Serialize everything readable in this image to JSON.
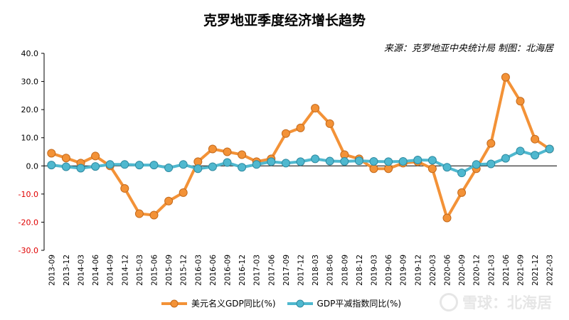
{
  "title": "克罗地亚季度经济增长趋势",
  "source": "来源：克罗地亚中央统计局 制图：北海居",
  "watermark": "雪球：北海居",
  "chart_data": {
    "type": "line",
    "title": "克罗地亚季度经济增长趋势",
    "ylim": [
      -30,
      40
    ],
    "yticks": [
      "40.0",
      "30.0",
      "20.0",
      "10.0",
      "0.0",
      "-10.0",
      "-20.0",
      "-30.0"
    ],
    "ytick_values": [
      40,
      30,
      20,
      10,
      0,
      -10,
      -20,
      -30
    ],
    "negative_tick_color": "#e00000",
    "grid": false,
    "legend": "bottom",
    "categories": [
      "2013-09",
      "2013-12",
      "2014-03",
      "2014-06",
      "2014-09",
      "2014-12",
      "2015-03",
      "2015-06",
      "2015-09",
      "2015-12",
      "2016-03",
      "2016-06",
      "2016-09",
      "2016-12",
      "2017-03",
      "2017-06",
      "2017-09",
      "2017-12",
      "2018-03",
      "2018-06",
      "2018-09",
      "2018-12",
      "2019-03",
      "2019-06",
      "2019-09",
      "2019-12",
      "2020-03",
      "2020-06",
      "2020-09",
      "2020-12",
      "2021-03",
      "2021-06",
      "2021-09",
      "2021-12",
      "2022-03"
    ],
    "series": [
      {
        "name": "美元名义GDP同比(%)",
        "color": "#f39237",
        "values": [
          4.5,
          2.8,
          1.0,
          3.5,
          0.0,
          -8.0,
          -17.0,
          -17.5,
          -12.5,
          -9.5,
          1.5,
          6.0,
          5.0,
          4.0,
          1.5,
          2.5,
          11.5,
          13.5,
          20.5,
          15.0,
          4.0,
          2.5,
          -1.0,
          -1.0,
          1.0,
          1.5,
          -1.0,
          -18.5,
          -9.5,
          -1.0,
          8.0,
          31.5,
          23.0,
          9.5,
          6.0
        ]
      },
      {
        "name": "GDP平减指数同比(%)",
        "color": "#4fb8cf",
        "values": [
          0.3,
          -0.3,
          -0.8,
          -0.2,
          0.5,
          0.5,
          0.3,
          0.3,
          -0.7,
          0.5,
          -1.0,
          -0.3,
          1.2,
          -0.5,
          0.5,
          1.5,
          1.0,
          1.5,
          2.5,
          1.7,
          1.6,
          1.8,
          1.6,
          1.5,
          1.6,
          2.1,
          2.0,
          -0.5,
          -2.5,
          0.5,
          0.7,
          2.7,
          5.3,
          3.8,
          6.0
        ]
      }
    ]
  }
}
